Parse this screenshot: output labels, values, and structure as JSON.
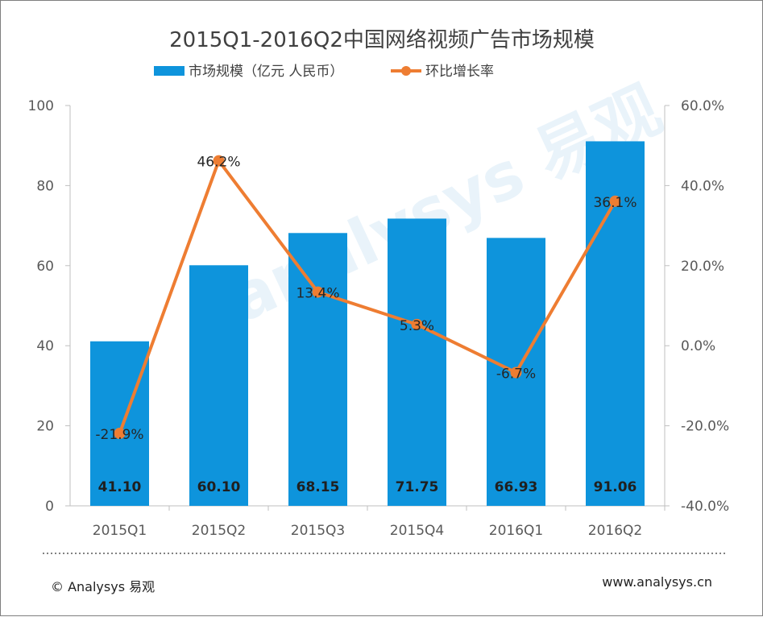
{
  "chart_data": {
    "type": "bar+line",
    "title": "2015Q1-2016Q2中国网络视频广告市场规模",
    "categories": [
      "2015Q1",
      "2015Q2",
      "2015Q3",
      "2015Q4",
      "2016Q1",
      "2016Q2"
    ],
    "series": [
      {
        "name": "市场规模（亿元  人民币）",
        "type": "bar",
        "axis": "left",
        "values": [
          41.1,
          60.1,
          68.15,
          71.75,
          66.93,
          91.06
        ],
        "labels": [
          "41.10",
          "60.10",
          "68.15",
          "71.75",
          "66.93",
          "91.06"
        ]
      },
      {
        "name": "环比增长率",
        "type": "line",
        "axis": "right",
        "values": [
          -21.9,
          46.2,
          13.4,
          5.3,
          -6.7,
          36.1
        ],
        "labels": [
          "-21.9%",
          "46.2%",
          "13.4%",
          "5.3%",
          "-6.7%",
          "36.1%"
        ]
      }
    ],
    "y_left": {
      "ylim": [
        0,
        100
      ],
      "ticks": [
        "0",
        "20",
        "40",
        "60",
        "80",
        "100"
      ]
    },
    "y_right": {
      "ylim": [
        -40,
        60
      ],
      "ticks": [
        "-40.0%",
        "-20.0%",
        "0.0%",
        "20.0%",
        "40.0%",
        "60.0%"
      ]
    },
    "legend_position": "top",
    "grid": false
  },
  "colors": {
    "bar": "#0e94dc",
    "line": "#ee7d32",
    "axis": "#bfbfbf",
    "text": "#595959"
  },
  "footer": {
    "copyright": "© Analysys 易观",
    "website": "www.analysys.cn"
  }
}
